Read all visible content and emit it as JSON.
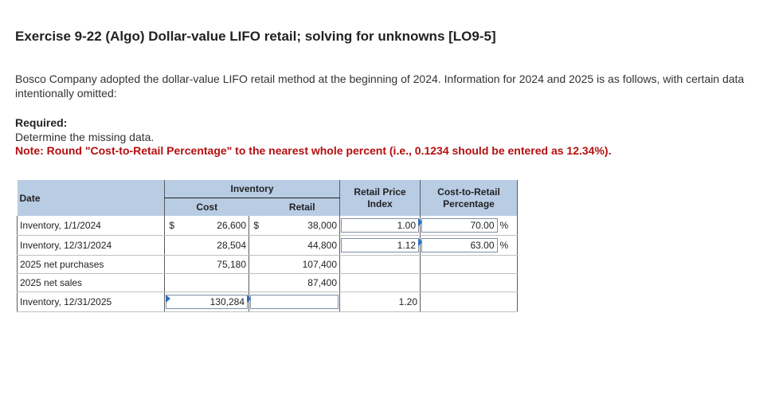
{
  "title": "Exercise 9-22 (Algo) Dollar-value LIFO retail; solving for unknowns [LO9-5]",
  "intro": "Bosco Company adopted the dollar-value LIFO retail method at the beginning of 2024. Information for 2024 and 2025 is as follows, with certain data intentionally omitted:",
  "required_label": "Required:",
  "required_text": "Determine the missing data.",
  "note": "Note: Round \"Cost-to-Retail Percentage\" to the nearest whole percent (i.e., 0.1234 should be entered as 12.34%).",
  "table": {
    "headers": {
      "date": "Date",
      "inventory": "Inventory",
      "cost": "Cost",
      "retail": "Retail",
      "retail_price_index": "Retail Price Index",
      "cost_to_retail": "Cost-to-Retail Percentage"
    },
    "currency": "$",
    "percent": "%",
    "rows": [
      {
        "label": "Inventory, 1/1/2024",
        "cost_currency": "$",
        "cost": "26,600",
        "retail_currency": "$",
        "retail": "38,000",
        "index": "1.00",
        "pct": "70.00",
        "pct_symbol": "%"
      },
      {
        "label": "Inventory, 12/31/2024",
        "cost_currency": "",
        "cost": "28,504",
        "retail_currency": "",
        "retail": "44,800",
        "index": "1.12",
        "pct": "63.00",
        "pct_symbol": "%"
      },
      {
        "label": "2025 net purchases",
        "cost_currency": "",
        "cost": "75,180",
        "retail_currency": "",
        "retail": "107,400",
        "index": "",
        "pct": "",
        "pct_symbol": ""
      },
      {
        "label": "2025 net sales",
        "cost_currency": "",
        "cost": "",
        "retail_currency": "",
        "retail": "87,400",
        "index": "",
        "pct": "",
        "pct_symbol": ""
      },
      {
        "label": "Inventory, 12/31/2025",
        "cost_currency": "",
        "cost": "130,284",
        "retail_currency": "",
        "retail": "",
        "index": "1.20",
        "pct": "",
        "pct_symbol": ""
      }
    ]
  }
}
